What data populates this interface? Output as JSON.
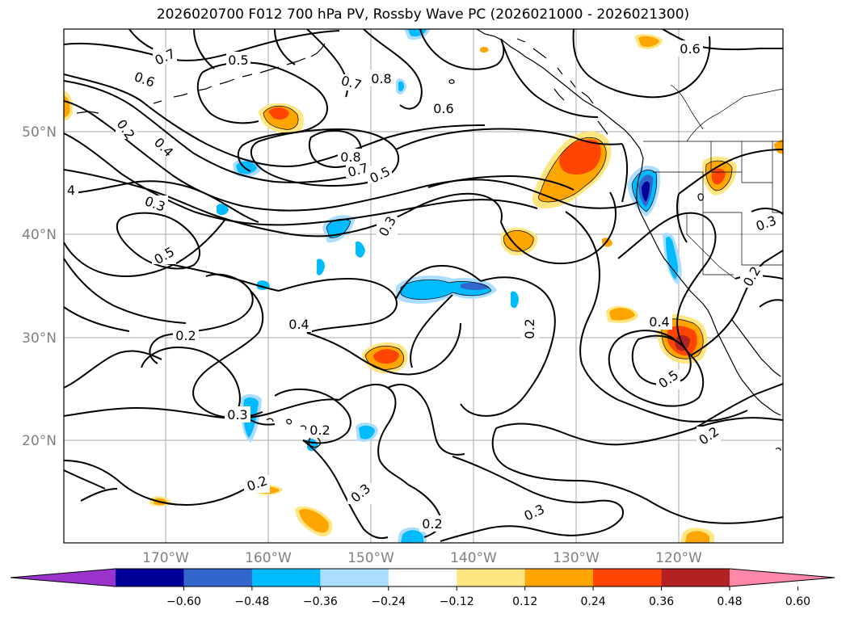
{
  "title": "2026020700 F012 700 hPa PV, Rossby Wave PC (2026021000 - 2026021300)",
  "lat_labels": [
    "50°N",
    "40°N",
    "30°N",
    "20°N"
  ],
  "lon_labels": [
    "170°W",
    "160°W",
    "150°W",
    "140°W",
    "130°W",
    "120°W"
  ],
  "contour_labels": {
    "a": "0.7",
    "b": "0.5",
    "c": "0.6",
    "d": "0.7",
    "e": "0.8",
    "f": "0.6",
    "g": "0.6",
    "h": "0.2",
    "i": "0.4",
    "j": "0.8",
    "k": "0.7",
    "l": "0.5",
    "m": "4",
    "n": "0.3",
    "o": "0.3",
    "p": "0.5",
    "q": "0.3",
    "r": "0.2",
    "s": "0.4",
    "t": "0.2",
    "u": "0.4",
    "v": "0.5",
    "w": "0.3",
    "x": "0.2",
    "y": "0.2",
    "z": "0.3",
    "aa": "0.2",
    "ab": "0.3",
    "ac": "0.2",
    "ad": "0.2"
  },
  "colorbar": {
    "ticks": [
      "−0.60",
      "−0.48",
      "−0.36",
      "−0.24",
      "−0.12",
      "0.12",
      "0.24",
      "0.36",
      "0.48",
      "0.60"
    ],
    "colors": [
      "#9933cc",
      "#000099",
      "#3366cc",
      "#00bbff",
      "#aaddff",
      "#ffffff",
      "#ffe680",
      "#ffa500",
      "#ff4500",
      "#b22222",
      "#ff88aa"
    ]
  }
}
